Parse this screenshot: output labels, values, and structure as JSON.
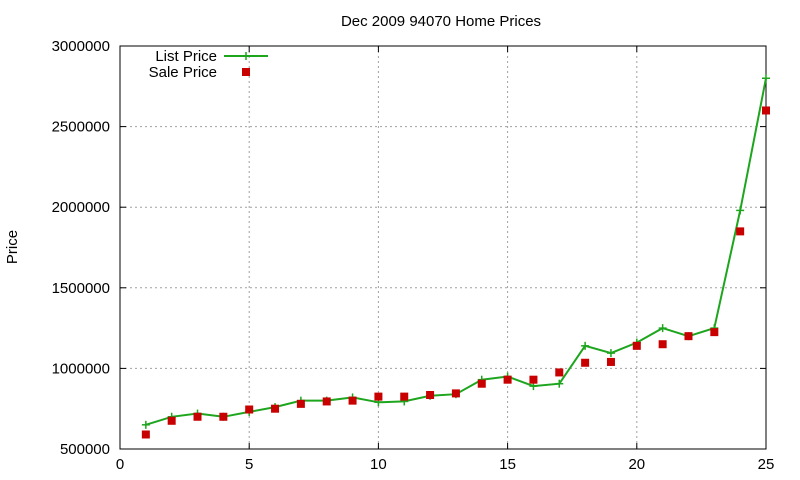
{
  "chart_data": {
    "type": "line",
    "title": "Dec 2009 94070 Home Prices",
    "xlabel": "",
    "ylabel": "Price",
    "xlim": [
      0,
      25
    ],
    "ylim": [
      500000,
      3000000
    ],
    "xticks": [
      "0",
      "5",
      "10",
      "15",
      "20",
      "25"
    ],
    "yticks": [
      "500000",
      "1000000",
      "1500000",
      "2000000",
      "2500000",
      "3000000"
    ],
    "grid": true,
    "legend_position": "top-left",
    "x": [
      1,
      2,
      3,
      4,
      5,
      6,
      7,
      8,
      9,
      10,
      11,
      12,
      13,
      14,
      15,
      16,
      17,
      18,
      19,
      20,
      21,
      22,
      23,
      24,
      25
    ],
    "series": [
      {
        "name": "List Price",
        "style": "line+cross",
        "color": "#1ea51e",
        "values": [
          650000,
          700000,
          720000,
          700000,
          730000,
          760000,
          800000,
          800000,
          820000,
          790000,
          795000,
          830000,
          840000,
          930000,
          950000,
          890000,
          905000,
          1140000,
          1095000,
          1160000,
          1250000,
          1200000,
          1250000,
          1980000,
          2800000
        ]
      },
      {
        "name": "Sale Price",
        "style": "square-marker",
        "color": "#c80000",
        "values": [
          590000,
          675000,
          700000,
          700000,
          745000,
          750000,
          780000,
          795000,
          800000,
          825000,
          825000,
          835000,
          845000,
          905000,
          930000,
          930000,
          975000,
          1035000,
          1040000,
          1140000,
          1150000,
          1200000,
          1225000,
          1850000,
          2600000
        ]
      }
    ]
  }
}
